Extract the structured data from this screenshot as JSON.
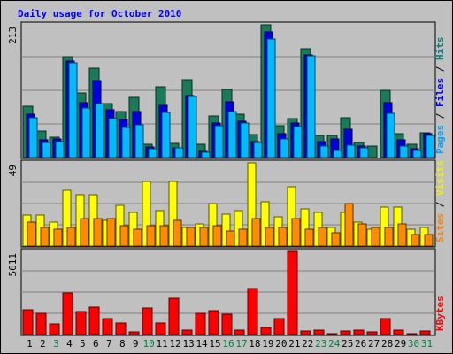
{
  "chart_data": {
    "type": "bar",
    "title": "Daily usage for October 2010",
    "categories": [
      "1",
      "2",
      "3",
      "4",
      "5",
      "6",
      "7",
      "8",
      "9",
      "10",
      "11",
      "12",
      "13",
      "14",
      "15",
      "16",
      "17",
      "18",
      "19",
      "20",
      "21",
      "22",
      "23",
      "24",
      "25",
      "26",
      "27",
      "28",
      "29",
      "30",
      "31"
    ],
    "weekend_days": [
      "3",
      "10",
      "16",
      "17",
      "23",
      "24",
      "30",
      "31"
    ],
    "panels": [
      {
        "id": "hits",
        "ymax_label": "213",
        "ymax": 213,
        "axis_labels": [
          {
            "text": "Pages",
            "color": "#00a0ff"
          },
          {
            "text": " / ",
            "color": "#000000"
          },
          {
            "text": "Files",
            "color": "#0000ff"
          },
          {
            "text": " / ",
            "color": "#000000"
          },
          {
            "text": "Hits",
            "color": "#008080"
          }
        ],
        "series": [
          {
            "name": "Hits",
            "color": "#1a7a5a",
            "values": [
              83,
              42,
              33,
              162,
              103,
              144,
              87,
              74,
              96,
              22,
              114,
              23,
              125,
              21,
              67,
              109,
              69,
              37,
              213,
              51,
              63,
              175,
              36,
              36,
              64,
              24,
              19,
              108,
              39,
              21,
              40
            ]
          },
          {
            "name": "Files",
            "color": "#0000dd",
            "values": [
              70,
              28,
              30,
              155,
              88,
              124,
              76,
              61,
              74,
              17,
              84,
              16,
              100,
              10,
              55,
              90,
              58,
              26,
              201,
              38,
              55,
              165,
              26,
              30,
              46,
              18,
              0,
              88,
              29,
              14,
              38
            ]
          },
          {
            "name": "Pages",
            "color": "#00bbff",
            "values": [
              64,
              24,
              25,
              152,
              80,
              86,
              62,
              48,
              52,
              14,
              73,
              16,
              98,
              9,
              51,
              74,
              56,
              24,
              190,
              30,
              50,
              164,
              18,
              11,
              20,
              16,
              0,
              71,
              19,
              11,
              35
            ]
          }
        ]
      },
      {
        "id": "visits",
        "ymax_label": "49",
        "ymax": 49,
        "axis_labels": [
          {
            "text": "Sites",
            "color": "#ff8000"
          },
          {
            "text": " / ",
            "color": "#000000"
          },
          {
            "text": "Visits",
            "color": "#f0f000"
          }
        ],
        "series": [
          {
            "name": "Visits",
            "color": "#ffff00",
            "values": [
              18,
              18,
              14,
              33,
              30,
              30,
              15,
              24,
              20,
              38,
              21,
              38,
              11,
              13,
              25,
              19,
              21,
              49,
              26,
              17,
              35,
              22,
              20,
              11,
              20,
              14,
              10,
              23,
              23,
              10,
              11
            ]
          },
          {
            "name": "Sites",
            "color": "#ff8c00",
            "values": [
              14,
              11,
              10,
              11,
              16,
              16,
              16,
              12,
              10,
              12,
              12,
              15,
              11,
              11,
              12,
              9,
              10,
              16,
              11,
              11,
              16,
              10,
              11,
              8,
              25,
              13,
              11,
              11,
              13,
              7,
              7
            ]
          }
        ]
      },
      {
        "id": "kbytes",
        "ymax_label": "5611",
        "ymax": 5611,
        "axis_labels": [
          {
            "text": "KBytes",
            "color": "#ff0000"
          }
        ],
        "series": [
          {
            "name": "KBytes",
            "color": "#ff0000",
            "values": [
              1700,
              1450,
              700,
              2800,
              1550,
              1850,
              1050,
              800,
              180,
              1800,
              750,
              2450,
              280,
              1450,
              1620,
              1390,
              280,
              3120,
              480,
              1090,
              5611,
              230,
              270,
              70,
              230,
              270,
              180,
              1060,
              280,
              60,
              220
            ]
          }
        ]
      }
    ]
  }
}
